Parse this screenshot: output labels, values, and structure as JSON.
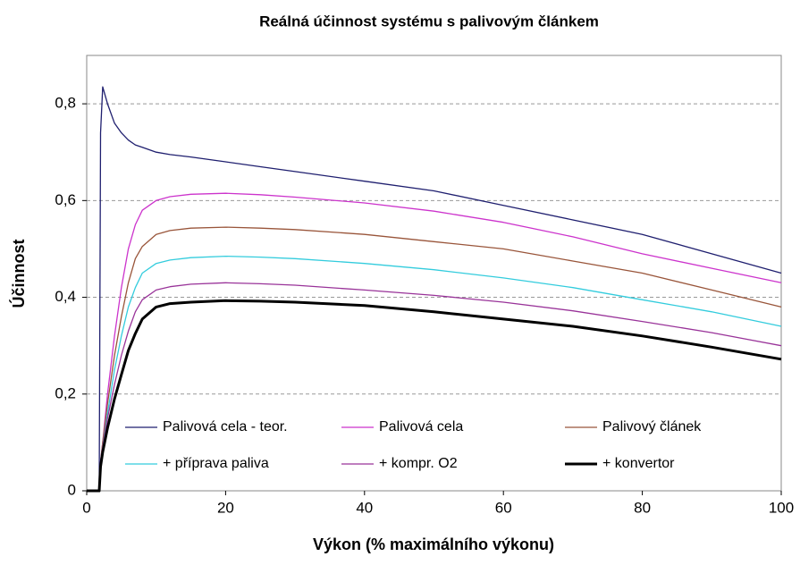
{
  "chart_data": {
    "type": "line",
    "title": "Reálná účinnost systému s palivovým článkem",
    "x_label": "Výkon (% maximálního výkonu)",
    "y_label": "Účinnost",
    "x": [
      0,
      1.8,
      2,
      2.3,
      3,
      4,
      5,
      6,
      7,
      8,
      10,
      12,
      15,
      20,
      25,
      30,
      40,
      50,
      60,
      70,
      80,
      90,
      100
    ],
    "series": [
      {
        "name": "Palivová cela - teor.",
        "color": "#1f1f6f",
        "width": 1.3,
        "values": [
          null,
          0,
          0.74,
          0.835,
          0.8,
          0.76,
          0.74,
          0.725,
          0.715,
          0.71,
          0.7,
          0.695,
          0.69,
          0.68,
          0.67,
          0.66,
          0.64,
          0.62,
          0.59,
          0.56,
          0.53,
          0.49,
          0.45
        ]
      },
      {
        "name": "Palivová cela",
        "color": "#cc33cc",
        "width": 1.3,
        "values": [
          null,
          0,
          0.06,
          0.1,
          0.2,
          0.32,
          0.42,
          0.5,
          0.55,
          0.58,
          0.6,
          0.608,
          0.613,
          0.615,
          0.612,
          0.607,
          0.595,
          0.578,
          0.555,
          0.525,
          0.49,
          0.46,
          0.43
        ]
      },
      {
        "name": "Palivový článek",
        "color": "#99553a",
        "width": 1.3,
        "values": [
          null,
          0,
          0.06,
          0.1,
          0.18,
          0.28,
          0.36,
          0.43,
          0.48,
          0.505,
          0.53,
          0.538,
          0.543,
          0.545,
          0.543,
          0.54,
          0.53,
          0.515,
          0.5,
          0.475,
          0.45,
          0.415,
          0.38
        ]
      },
      {
        "name": "+ příprava paliva",
        "color": "#33ccdd",
        "width": 1.3,
        "values": [
          null,
          0,
          0.06,
          0.09,
          0.16,
          0.25,
          0.32,
          0.38,
          0.42,
          0.45,
          0.47,
          0.477,
          0.482,
          0.485,
          0.483,
          0.48,
          0.47,
          0.457,
          0.44,
          0.42,
          0.395,
          0.37,
          0.34
        ]
      },
      {
        "name": "+ kompr. O2",
        "color": "#993399",
        "width": 1.3,
        "values": [
          null,
          0,
          0.06,
          0.09,
          0.15,
          0.22,
          0.28,
          0.33,
          0.37,
          0.395,
          0.415,
          0.422,
          0.427,
          0.43,
          0.428,
          0.425,
          0.415,
          0.404,
          0.39,
          0.372,
          0.35,
          0.327,
          0.3
        ]
      },
      {
        "name": "+ konvertor",
        "color": "#000000",
        "width": 3,
        "values": [
          0,
          0,
          0.05,
          0.08,
          0.13,
          0.19,
          0.24,
          0.29,
          0.325,
          0.355,
          0.38,
          0.387,
          0.39,
          0.393,
          0.392,
          0.39,
          0.383,
          0.37,
          0.355,
          0.34,
          0.32,
          0.297,
          0.272
        ]
      }
    ],
    "xlim": [
      0,
      100
    ],
    "xticks": [
      0,
      20,
      40,
      60,
      80,
      100
    ],
    "ylim": [
      0,
      0.9
    ],
    "yticks": [
      0,
      {
        "value": 0.2,
        "label": "0,2"
      },
      {
        "value": 0.4,
        "label": "0,4"
      },
      {
        "value": 0.6,
        "label": "0,6"
      },
      {
        "value": 0.8,
        "label": "0,8"
      }
    ],
    "grid": true,
    "legend": "lower center",
    "legend_columns": 3
  }
}
